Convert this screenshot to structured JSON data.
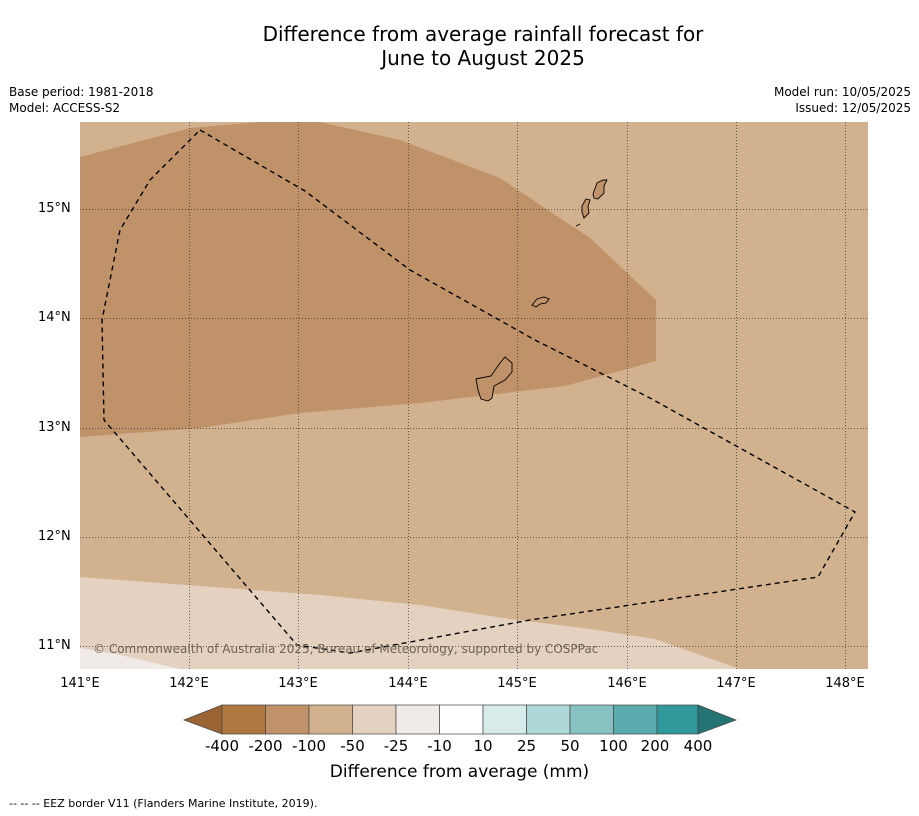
{
  "title_line1": "Difference from average rainfall forecast for",
  "title_line2": "June to August 2025",
  "meta_left": {
    "base_period": "Base period: 1981-2018",
    "model": "Model: ACCESS-S2"
  },
  "meta_right": {
    "model_run": "Model run: 10/05/2025",
    "issued": "Issued: 12/05/2025"
  },
  "map": {
    "lon_labels": [
      "141°E",
      "142°E",
      "143°E",
      "144°E",
      "145°E",
      "146°E",
      "147°E",
      "148°E"
    ],
    "lat_labels": [
      "15°N",
      "14°N",
      "13°N",
      "12°N",
      "11°N"
    ],
    "copyright": "© Commonwealth of Australia 2025, Bureau of Meteorology, supported by COSPPac"
  },
  "colorbar": {
    "title": "Difference from average (mm)",
    "labels": [
      "-400",
      "-200",
      "-100",
      "-50",
      "-25",
      "-10",
      "10",
      "25",
      "50",
      "100",
      "200",
      "400"
    ],
    "colors": [
      "#9b6435",
      "#af7840",
      "#c09269",
      "#d2b18f",
      "#e4d1bf",
      "#f0ebe6",
      "#ffffff",
      "#d6ebea",
      "#add8d7",
      "#86c2c2",
      "#5aabad",
      "#31999b",
      "#247473"
    ]
  },
  "footnote": "--  --  -- EEZ border V11 (Flanders Marine Institute, 2019)."
}
